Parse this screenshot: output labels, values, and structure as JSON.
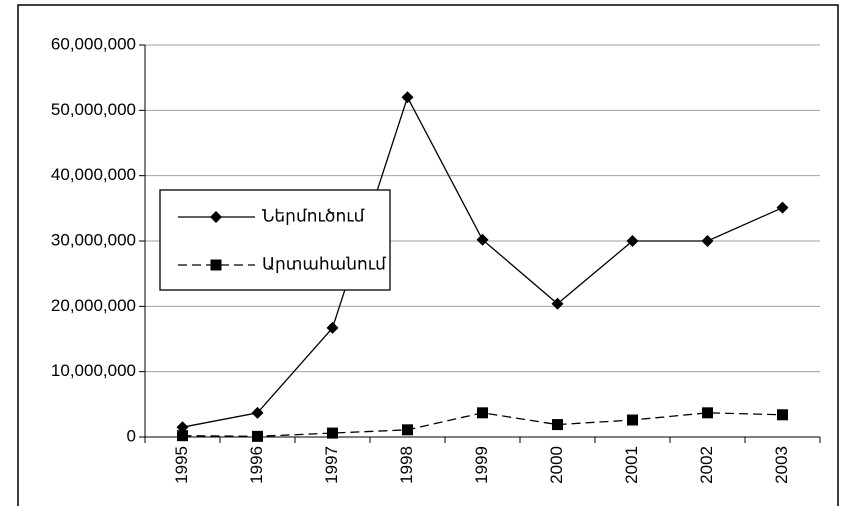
{
  "chart_data": {
    "type": "line",
    "categories": [
      "1995",
      "1996",
      "1997",
      "1998",
      "1999",
      "2000",
      "2001",
      "2002",
      "2003"
    ],
    "series": [
      {
        "name": "Ներմուծում",
        "color": "#000000",
        "marker": "diamond",
        "dash": "solid",
        "values": [
          1500000,
          3700000,
          16700000,
          52000000,
          30200000,
          20400000,
          30000000,
          30000000,
          35100000
        ]
      },
      {
        "name": "Արտահանում",
        "color": "#000000",
        "marker": "square",
        "dash": "dashed",
        "values": [
          200000,
          100000,
          600000,
          1100000,
          3700000,
          1900000,
          2600000,
          3700000,
          3400000
        ]
      }
    ],
    "ylim": [
      0,
      60000000
    ],
    "yticks": [
      0,
      {
        "value": 10000000,
        "label": "10,000,000"
      },
      {
        "value": 20000000,
        "label": "20,000,000"
      },
      {
        "value": 30000000,
        "label": "30,000,000"
      },
      {
        "value": 40000000,
        "label": "40,000,000"
      },
      {
        "value": 50000000,
        "label": "50,000,000"
      },
      {
        "value": 60000000,
        "label": "60,000,000"
      }
    ],
    "grid": true,
    "legend": "left"
  }
}
